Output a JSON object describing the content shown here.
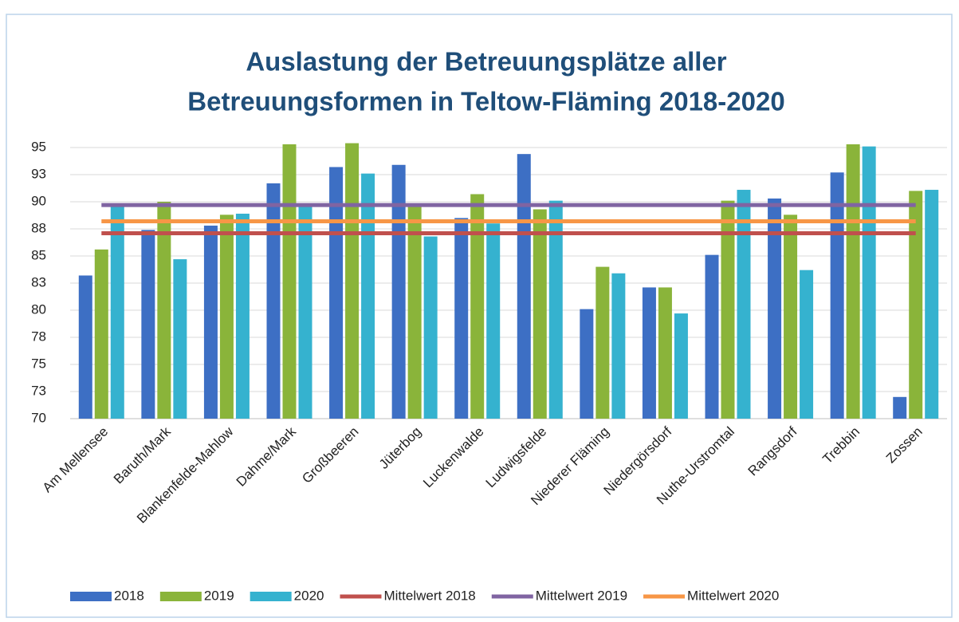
{
  "chart_data": {
    "type": "bar",
    "title": [
      "Auslastung der Betreuungsplätze aller",
      "Betreuungsformen in Teltow-Fläming 2018-2020"
    ],
    "categories": [
      "Am Mellensee",
      "Baruth/Mark",
      "Blankenfelde-Mahlow",
      "Dahme/Mark",
      "Großbeeren",
      "Jüterbog",
      "Luckenwalde",
      "Ludwigsfelde",
      "Niederer Fläming",
      "Niedergörsdorf",
      "Nuthe-Urstromtal",
      "Rangsdorf",
      "Trebbin",
      "Zossen"
    ],
    "series": [
      {
        "name": "2018",
        "type": "bar",
        "color": "#3d6fc4",
        "values": [
          83.2,
          87.4,
          87.8,
          91.7,
          93.2,
          93.4,
          88.5,
          94.4,
          80.1,
          82.1,
          85.1,
          90.3,
          92.7,
          72.0
        ]
      },
      {
        "name": "2019",
        "type": "bar",
        "color": "#8ab43a",
        "values": [
          85.6,
          90.0,
          88.8,
          95.3,
          95.4,
          89.6,
          90.7,
          89.3,
          84.0,
          82.1,
          90.1,
          88.8,
          95.3,
          91.0
        ]
      },
      {
        "name": "2020",
        "type": "bar",
        "color": "#35b2cf",
        "values": [
          89.6,
          84.7,
          88.9,
          89.6,
          92.6,
          86.8,
          88.0,
          90.1,
          83.4,
          79.7,
          91.1,
          83.7,
          95.1,
          91.1
        ]
      },
      {
        "name": "Mittelwert 2018",
        "type": "line",
        "color": "#c0504d",
        "values": [
          87.1,
          87.1,
          87.1,
          87.1,
          87.1,
          87.1,
          87.1,
          87.1,
          87.1,
          87.1,
          87.1,
          87.1,
          87.1,
          87.1
        ]
      },
      {
        "name": "Mittelwert 2019",
        "type": "line",
        "color": "#8064a2",
        "values": [
          89.7,
          89.7,
          89.7,
          89.7,
          89.7,
          89.7,
          89.7,
          89.7,
          89.7,
          89.7,
          89.7,
          89.7,
          89.7,
          89.7
        ]
      },
      {
        "name": "Mittelwert 2020",
        "type": "line",
        "color": "#f79646",
        "values": [
          88.2,
          88.2,
          88.2,
          88.2,
          88.2,
          88.2,
          88.2,
          88.2,
          88.2,
          88.2,
          88.2,
          88.2,
          88.2,
          88.2
        ]
      }
    ],
    "ylim": [
      70,
      95
    ],
    "yticks": [
      70,
      {
        "value": 72.5,
        "label": "73"
      },
      75,
      {
        "value": 77.5,
        "label": "78"
      },
      80,
      {
        "value": 82.5,
        "label": "83"
      },
      85,
      {
        "value": 87.5,
        "label": "88"
      },
      90,
      {
        "value": 92.5,
        "label": "93"
      },
      95
    ],
    "grid": true,
    "legend": "bottom"
  }
}
